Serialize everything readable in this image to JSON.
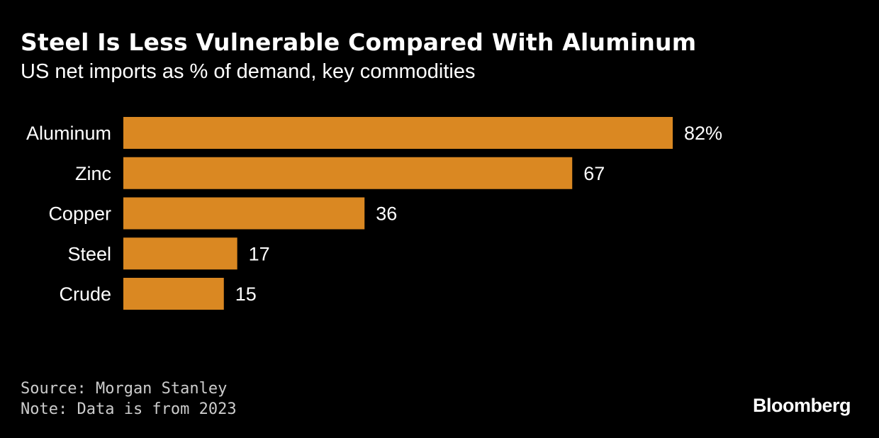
{
  "chart_data": {
    "type": "bar",
    "orientation": "horizontal",
    "title": "Steel Is Less Vulnerable Compared With Aluminum",
    "subtitle": "US net imports as % of demand, key commodities",
    "categories": [
      "Aluminum",
      "Zinc",
      "Copper",
      "Steel",
      "Crude"
    ],
    "values": [
      82,
      67,
      36,
      17,
      15
    ],
    "value_labels": [
      "82%",
      "67",
      "36",
      "17",
      "15"
    ],
    "xlim": [
      0,
      100
    ],
    "grid": false,
    "legend": "none",
    "bar_color": "#DA8822"
  },
  "footer": {
    "source": "Source: Morgan Stanley",
    "note": "Note: Data is from 2023"
  },
  "brand": {
    "logo_text": "Bloomberg"
  },
  "colors": {
    "background": "#000000",
    "text": "#FFFFFF",
    "footer_text": "#CCCCCC",
    "bar": "#DA8822"
  }
}
